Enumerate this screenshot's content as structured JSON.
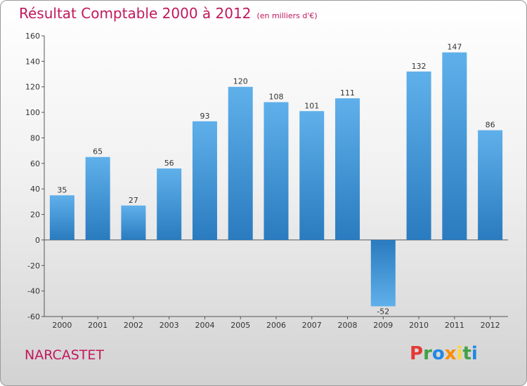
{
  "header": {
    "title": "Résultat Comptable 2000 à 2012",
    "subtitle": "(en milliers d'€)"
  },
  "footer": {
    "commune": "NARCASTET",
    "logo_text": "Proxiti"
  },
  "colors": {
    "title": "#c2185b",
    "bar_top": "#5fb0ea",
    "bar_bottom": "#2a7bbf",
    "logo_letters": [
      "#e53935",
      "#43a047",
      "#1e88e5",
      "#fb8c00",
      "#fdd835",
      "#43a047",
      "#1e88e5"
    ]
  },
  "chart_data": {
    "type": "bar",
    "title": "Résultat Comptable 2000 à 2012",
    "subtitle": "(en milliers d'€)",
    "categories": [
      "2000",
      "2001",
      "2002",
      "2003",
      "2004",
      "2005",
      "2006",
      "2007",
      "2008",
      "2009",
      "2010",
      "2011",
      "2012"
    ],
    "values": [
      35,
      65,
      27,
      56,
      93,
      120,
      108,
      101,
      111,
      -52,
      132,
      147,
      86
    ],
    "ylim": [
      -60,
      160
    ],
    "yticks": [
      -60,
      -40,
      -20,
      0,
      20,
      40,
      60,
      80,
      100,
      120,
      140,
      160
    ],
    "xlabel": "",
    "ylabel": "",
    "grid": false,
    "legend": "none"
  }
}
